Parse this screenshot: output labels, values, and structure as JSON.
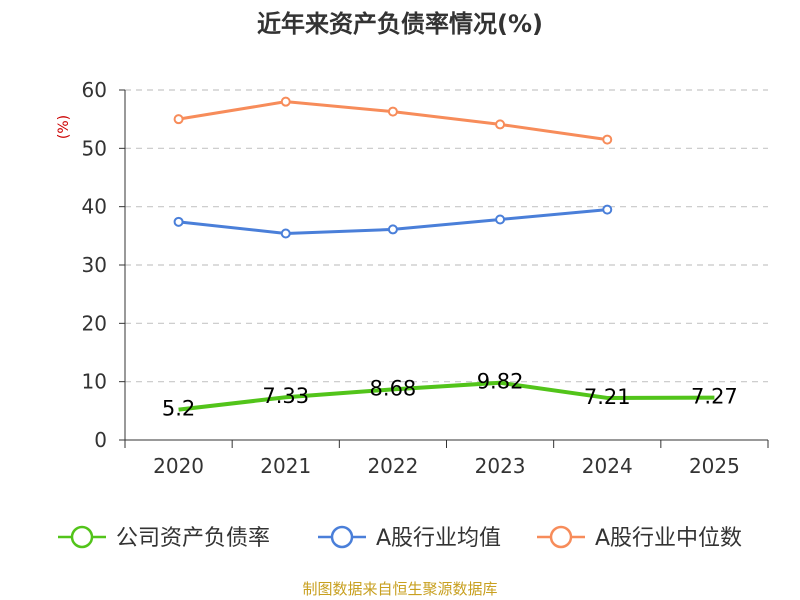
{
  "chart_data": {
    "type": "line",
    "title": "近年来资产负债率情况(%)",
    "ylabel": "(%)",
    "xlabel": "",
    "categories": [
      "2020",
      "2021",
      "2022",
      "2023",
      "2024",
      "2025"
    ],
    "ylim": [
      0,
      60
    ],
    "yticks": [
      0,
      10,
      20,
      30,
      40,
      50,
      60
    ],
    "grid": true,
    "legend_position": "bottom",
    "series": [
      {
        "name": "公司资产负债率",
        "color": "#52c41a",
        "values": [
          5.2,
          7.33,
          8.68,
          9.82,
          7.21,
          7.27
        ],
        "labels": [
          "5.2",
          "7.33",
          "8.68",
          "9.82",
          "7.21",
          "7.27"
        ]
      },
      {
        "name": "A股行业均值",
        "color": "#4a7fd9",
        "values": [
          37.4,
          35.4,
          36.1,
          37.8,
          39.5,
          null
        ]
      },
      {
        "name": "A股行业中位数",
        "color": "#f78c5a",
        "values": [
          55.0,
          58.0,
          56.3,
          54.1,
          51.5,
          null
        ]
      }
    ]
  },
  "source": "制图数据来自恒生聚源数据库"
}
